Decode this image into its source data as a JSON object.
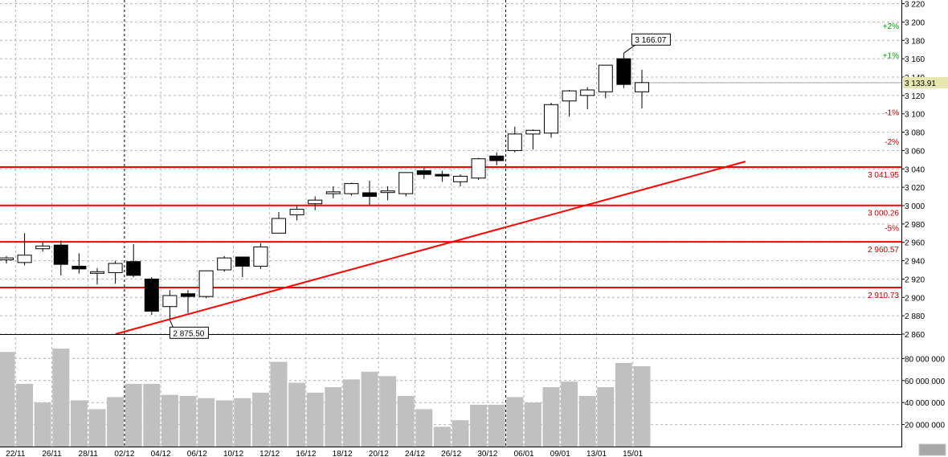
{
  "chart_data": [
    {
      "type": "candlestick",
      "title": "",
      "x_tick_labels": [
        "22/11",
        "26/11",
        "28/11",
        "02/12",
        "04/12",
        "06/12",
        "10/12",
        "12/12",
        "16/12",
        "18/12",
        "20/12",
        "24/12",
        "26/12",
        "30/12",
        "06/01",
        "09/01",
        "13/01",
        "15/01"
      ],
      "y_tick_labels": [
        "2 860",
        "2 880",
        "2 900",
        "2 920",
        "2 940",
        "2 960",
        "2 980",
        "3 000",
        "3 020",
        "3 040",
        "3 060",
        "3 080",
        "3 100",
        "3 120",
        "3 140",
        "3 160",
        "3 180",
        "3 200",
        "3 220"
      ],
      "y_ticks": [
        2860,
        2880,
        2900,
        2920,
        2940,
        2960,
        2980,
        3000,
        3020,
        3040,
        3060,
        3080,
        3100,
        3120,
        3140,
        3160,
        3180,
        3200,
        3220
      ],
      "ylim": [
        2860,
        3224
      ],
      "grid": true,
      "candles": [
        {
          "o": 2941,
          "h": 2945,
          "l": 2937,
          "c": 2943
        },
        {
          "o": 2938,
          "h": 2970,
          "l": 2935,
          "c": 2946
        },
        {
          "o": 2953,
          "h": 2960,
          "l": 2950,
          "c": 2956
        },
        {
          "o": 2957,
          "h": 2962,
          "l": 2924,
          "c": 2936
        },
        {
          "o": 2934,
          "h": 2948,
          "l": 2926,
          "c": 2931
        },
        {
          "o": 2928,
          "h": 2932,
          "l": 2914,
          "c": 2928
        },
        {
          "o": 2927,
          "h": 2940,
          "l": 2915,
          "c": 2937
        },
        {
          "o": 2939,
          "h": 2958,
          "l": 2922,
          "c": 2924
        },
        {
          "o": 2920,
          "h": 2922,
          "l": 2881,
          "c": 2885
        },
        {
          "o": 2890,
          "h": 2908,
          "l": 2876,
          "c": 2902
        },
        {
          "o": 2904,
          "h": 2908,
          "l": 2883,
          "c": 2901
        },
        {
          "o": 2901,
          "h": 2928,
          "l": 2899,
          "c": 2929
        },
        {
          "o": 2930,
          "h": 2945,
          "l": 2928,
          "c": 2943
        },
        {
          "o": 2944,
          "h": 2944,
          "l": 2922,
          "c": 2934
        },
        {
          "o": 2934,
          "h": 2959,
          "l": 2931,
          "c": 2955
        },
        {
          "o": 2970,
          "h": 2993,
          "l": 2970,
          "c": 2986
        },
        {
          "o": 2990,
          "h": 3000,
          "l": 2984,
          "c": 2996
        },
        {
          "o": 3002,
          "h": 3010,
          "l": 2995,
          "c": 3006
        },
        {
          "o": 3013,
          "h": 3021,
          "l": 3008,
          "c": 3015
        },
        {
          "o": 3013,
          "h": 3025,
          "l": 3011,
          "c": 3024
        },
        {
          "o": 3014,
          "h": 3027,
          "l": 3000,
          "c": 3010
        },
        {
          "o": 3016,
          "h": 3021,
          "l": 3006,
          "c": 3016
        },
        {
          "o": 3013,
          "h": 3036,
          "l": 3010,
          "c": 3036
        },
        {
          "o": 3038,
          "h": 3041,
          "l": 3029,
          "c": 3034
        },
        {
          "o": 3034,
          "h": 3038,
          "l": 3026,
          "c": 3033
        },
        {
          "o": 3026,
          "h": 3034,
          "l": 3021,
          "c": 3032
        },
        {
          "o": 3030,
          "h": 3052,
          "l": 3028,
          "c": 3051
        },
        {
          "o": 3054,
          "h": 3058,
          "l": 3044,
          "c": 3049
        },
        {
          "o": 3060,
          "h": 3086,
          "l": 3058,
          "c": 3078
        },
        {
          "o": 3078,
          "h": 3083,
          "l": 3061,
          "c": 3082
        },
        {
          "o": 3079,
          "h": 3112,
          "l": 3074,
          "c": 3110
        },
        {
          "o": 3114,
          "h": 3126,
          "l": 3097,
          "c": 3125
        },
        {
          "o": 3120,
          "h": 3129,
          "l": 3105,
          "c": 3126
        },
        {
          "o": 3124,
          "h": 3153,
          "l": 3117,
          "c": 3153
        },
        {
          "o": 3160,
          "h": 3166.07,
          "l": 3128,
          "c": 3132
        },
        {
          "o": 3124,
          "h": 3148,
          "l": 3106,
          "c": 3134
        }
      ],
      "horizontal_levels": [
        {
          "value": 3041.95,
          "label": "3 041.95",
          "color": "#ff0000"
        },
        {
          "value": 3000.26,
          "label": "3 000.26",
          "color": "#ff0000"
        },
        {
          "value": 2960.57,
          "label": "2 960.57",
          "color": "#ff0000"
        },
        {
          "value": 2910.73,
          "label": "2 910.73",
          "color": "#ff0000"
        }
      ],
      "trendline": {
        "from_candle": 6,
        "from_value": 2860,
        "to_candle": 40.7,
        "to_value": 3048,
        "color": "#ff0000"
      },
      "percent_marks": [
        {
          "label": "+2%",
          "value": 3196,
          "color": "#00a000"
        },
        {
          "label": "+1%",
          "value": 3164,
          "color": "#00a000"
        },
        {
          "label": "-1%",
          "value": 3102,
          "color": "#c00000"
        },
        {
          "label": "-2%",
          "value": 3070,
          "color": "#c00000"
        },
        {
          "label": "-5%",
          "value": 2976,
          "color": "#c00000"
        }
      ],
      "high_callout": {
        "label": "3 166.07",
        "candle": 34,
        "value": 3166.07
      },
      "low_callout": {
        "label": "2 875.50",
        "candle": 9,
        "value": 2875.5
      },
      "last_price": {
        "label": "3 133.91",
        "value": 3133.91,
        "highlight": "#e6e6b0"
      },
      "vertical_markers_candle": [
        6.5,
        27.5
      ]
    },
    {
      "type": "bar",
      "title": "",
      "y_tick_labels": [
        "20 000 000",
        "40 000 000",
        "60 000 000",
        "80 000 000"
      ],
      "y_ticks": [
        20000000,
        40000000,
        60000000,
        80000000
      ],
      "ylim": [
        0,
        100000000
      ],
      "values": [
        86000000,
        57000000,
        40000000,
        89000000,
        42000000,
        34000000,
        45000000,
        57000000,
        57000000,
        47000000,
        46000000,
        44000000,
        42000000,
        44000000,
        49000000,
        77000000,
        58000000,
        49000000,
        54000000,
        61000000,
        68000000,
        64000000,
        46000000,
        34000000,
        18000000,
        24000000,
        38000000,
        38000000,
        45000000,
        40000000,
        54000000,
        59000000,
        46000000,
        54000000,
        76000000,
        73000000
      ],
      "bar_color": "#c0c0c0"
    }
  ],
  "colors": {
    "grid": "#b4b4b4",
    "up_fill": "#ffffff",
    "down_fill": "#000000",
    "level_line": "#ff0000",
    "volume": "#c0c0c0"
  }
}
